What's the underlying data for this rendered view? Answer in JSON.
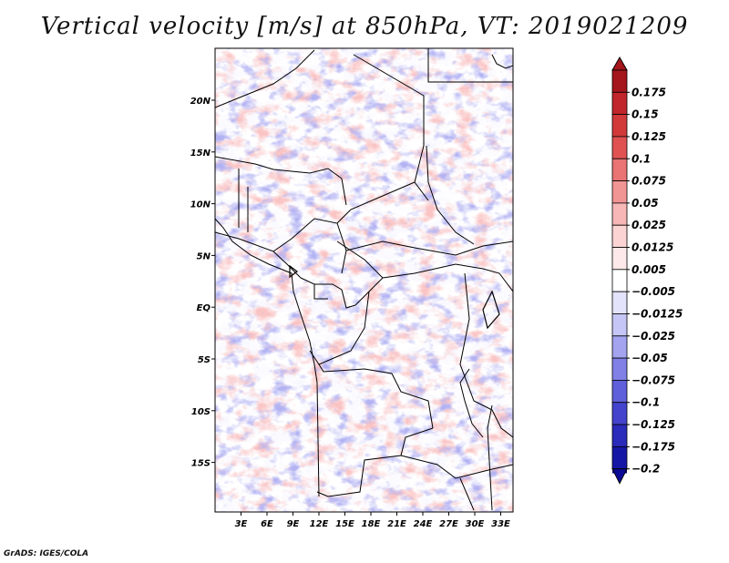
{
  "title": "Vertical velocity [m/s] at 850hPa, VT: 2019021209",
  "credit": "GrADS: IGES/COLA",
  "map": {
    "lon_labels": [
      "3E",
      "6E",
      "9E",
      "12E",
      "15E",
      "18E",
      "21E",
      "24E",
      "27E",
      "30E",
      "33E"
    ],
    "lat_labels": [
      "20N",
      "15N",
      "10N",
      "5N",
      "EQ",
      "5S",
      "10S",
      "15S"
    ]
  },
  "colorbar": {
    "levels": [
      {
        "label": "0.175",
        "color": "#a4161c"
      },
      {
        "label": "0.15",
        "color": "#c0262b"
      },
      {
        "label": "0.125",
        "color": "#d23a3a"
      },
      {
        "label": "0.1",
        "color": "#e05252"
      },
      {
        "label": "0.075",
        "color": "#ea7373"
      },
      {
        "label": "0.05",
        "color": "#f19494"
      },
      {
        "label": "0.025",
        "color": "#f7b7b7"
      },
      {
        "label": "0.0125",
        "color": "#fbd3d3"
      },
      {
        "label": "0.005",
        "color": "#fde9e9"
      },
      {
        "label": "−0.005",
        "color": "#ffffff"
      },
      {
        "label": "−0.0125",
        "color": "#e3e3fb"
      },
      {
        "label": "−0.025",
        "color": "#c6c6f6"
      },
      {
        "label": "−0.05",
        "color": "#a3a3ef"
      },
      {
        "label": "−0.075",
        "color": "#8080e6"
      },
      {
        "label": "−0.1",
        "color": "#5f5fdb"
      },
      {
        "label": "−0.125",
        "color": "#4343cd"
      },
      {
        "label": "−0.175",
        "color": "#2a2abb"
      },
      {
        "label": "−0.2",
        "color": "#1616a6"
      }
    ],
    "bottom_color": "#0a0a96"
  }
}
